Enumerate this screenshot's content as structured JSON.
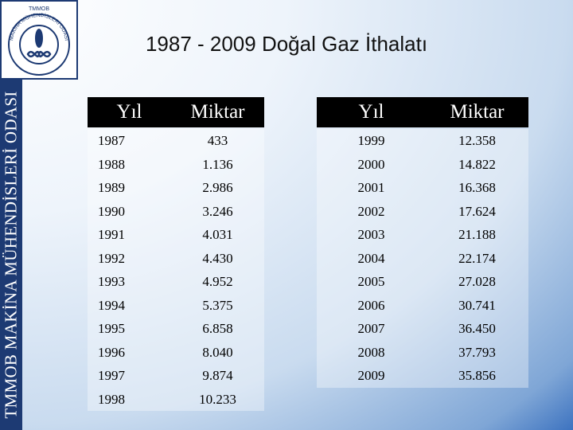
{
  "sidebar": "TMMOB MAKİNA MÜHENDİSLERİ ODASI",
  "logo": {
    "top": "TMMOB",
    "ring": "MAKİNA MÜHENDİSLERİ ODASI"
  },
  "title": "1987 - 2009 Doğal Gaz İthalatı",
  "tables": [
    {
      "header": [
        "Yıl",
        "Miktar"
      ],
      "rows": [
        [
          "1987",
          "433"
        ],
        [
          "1988",
          "1.136"
        ],
        [
          "1989",
          "2.986"
        ],
        [
          "1990",
          "3.246"
        ],
        [
          "1991",
          "4.031"
        ],
        [
          "1992",
          "4.430"
        ],
        [
          "1993",
          "4.952"
        ],
        [
          "1994",
          "5.375"
        ],
        [
          "1995",
          "6.858"
        ],
        [
          "1996",
          "8.040"
        ],
        [
          "1997",
          "9.874"
        ],
        [
          "1998",
          "10.233"
        ]
      ]
    },
    {
      "header": [
        "Yıl",
        "Miktar"
      ],
      "rows": [
        [
          "1999",
          "12.358"
        ],
        [
          "2000",
          "14.822"
        ],
        [
          "2001",
          "16.368"
        ],
        [
          "2002",
          "17.624"
        ],
        [
          "2003",
          "21.188"
        ],
        [
          "2004",
          "22.174"
        ],
        [
          "2005",
          "27.028"
        ],
        [
          "2006",
          "30.741"
        ],
        [
          "2007",
          "36.450"
        ],
        [
          "2008",
          "37.793"
        ],
        [
          "2009",
          "35.856"
        ]
      ]
    }
  ]
}
